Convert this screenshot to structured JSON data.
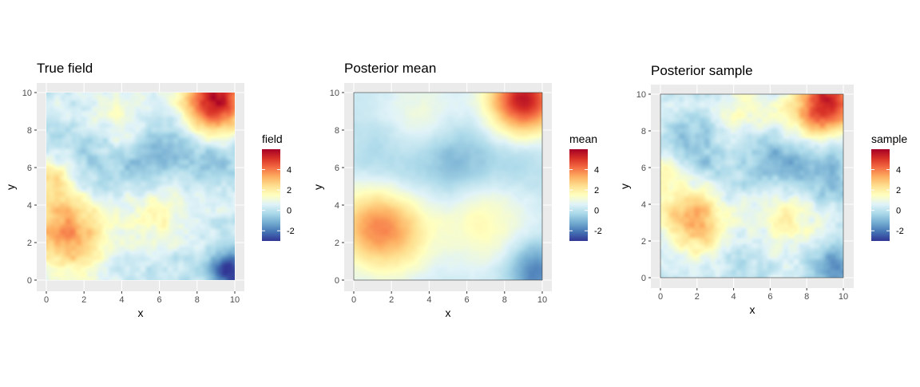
{
  "chart_data": [
    {
      "type": "heatmap",
      "title": "True field",
      "xlabel": "x",
      "ylabel": "y",
      "xlim": [
        0,
        10
      ],
      "ylim": [
        0,
        10
      ],
      "x_ticks": [
        "0",
        "2",
        "4",
        "6",
        "8",
        "10"
      ],
      "y_ticks": [
        "0",
        "2",
        "4",
        "6",
        "8",
        "10"
      ],
      "legend_title": "field",
      "legend_ticks": [
        "-2",
        "0",
        "2",
        "4"
      ],
      "value_range": [
        -3,
        6
      ],
      "blobs": [
        {
          "x": 9.0,
          "y": 9.6,
          "value": 5.5,
          "s": 1.2
        },
        {
          "x": 0.8,
          "y": 3.0,
          "value": 2.6,
          "s": 1.4
        },
        {
          "x": 2.0,
          "y": 1.5,
          "value": 1.5,
          "s": 1.5
        },
        {
          "x": 6.0,
          "y": 3.2,
          "value": 1.4,
          "s": 1.5
        },
        {
          "x": 4.0,
          "y": 8.3,
          "value": 1.3,
          "s": 1.2
        },
        {
          "x": 0.5,
          "y": 5.5,
          "value": 1.8,
          "s": 0.8
        },
        {
          "x": 5.8,
          "y": 6.8,
          "value": -1.4,
          "s": 1.4
        },
        {
          "x": 2.2,
          "y": 6.2,
          "value": -1.0,
          "s": 1.5
        },
        {
          "x": 9.0,
          "y": 6.3,
          "value": -0.9,
          "s": 1.0
        },
        {
          "x": 9.8,
          "y": 0.5,
          "value": -3.2,
          "s": 0.8
        },
        {
          "x": 3.8,
          "y": 0.9,
          "value": -0.6,
          "s": 1.5
        },
        {
          "x": 7.0,
          "y": 1.0,
          "value": -0.4,
          "s": 1.5
        }
      ]
    },
    {
      "type": "heatmap",
      "title": "Posterior mean",
      "xlabel": "x",
      "ylabel": "y",
      "xlim": [
        0,
        10
      ],
      "ylim": [
        0,
        10
      ],
      "x_ticks": [
        "0",
        "2",
        "4",
        "6",
        "8",
        "10"
      ],
      "y_ticks": [
        "0",
        "2",
        "4",
        "6",
        "8",
        "10"
      ],
      "legend_title": "mean",
      "legend_ticks": [
        "-2",
        "0",
        "2",
        "4"
      ],
      "value_range": [
        -3,
        6
      ],
      "blobs": [
        {
          "x": 9.0,
          "y": 9.6,
          "value": 5.2,
          "s": 1.3
        },
        {
          "x": 1.0,
          "y": 3.0,
          "value": 2.6,
          "s": 1.5
        },
        {
          "x": 2.5,
          "y": 2.2,
          "value": 1.6,
          "s": 1.6
        },
        {
          "x": 6.8,
          "y": 3.0,
          "value": 1.4,
          "s": 1.7
        },
        {
          "x": 3.5,
          "y": 8.5,
          "value": 1.0,
          "s": 1.5
        },
        {
          "x": 5.5,
          "y": 6.3,
          "value": -1.4,
          "s": 1.5
        },
        {
          "x": 1.8,
          "y": 6.5,
          "value": -0.8,
          "s": 1.7
        },
        {
          "x": 9.0,
          "y": 6.3,
          "value": -0.6,
          "s": 1.2
        },
        {
          "x": 9.6,
          "y": 0.5,
          "value": -2.2,
          "s": 1.1
        },
        {
          "x": 4.2,
          "y": 1.0,
          "value": -0.4,
          "s": 1.7
        }
      ]
    },
    {
      "type": "heatmap",
      "title": "Posterior sample",
      "xlabel": "x",
      "ylabel": "y",
      "xlim": [
        0,
        10
      ],
      "ylim": [
        0,
        10
      ],
      "x_ticks": [
        "0",
        "2",
        "4",
        "6",
        "8",
        "10"
      ],
      "y_ticks": [
        "0",
        "2",
        "4",
        "6",
        "8",
        "10"
      ],
      "legend_title": "sample",
      "legend_ticks": [
        "-2",
        "0",
        "2",
        "4"
      ],
      "value_range": [
        -3,
        6
      ],
      "blobs": [
        {
          "x": 9.2,
          "y": 9.5,
          "value": 5.2,
          "s": 1.1
        },
        {
          "x": 1.5,
          "y": 3.5,
          "value": 2.3,
          "s": 1.2
        },
        {
          "x": 2.5,
          "y": 2.5,
          "value": 1.6,
          "s": 1.1
        },
        {
          "x": 6.8,
          "y": 3.3,
          "value": 1.6,
          "s": 1.3
        },
        {
          "x": 4.5,
          "y": 8.6,
          "value": 1.1,
          "s": 1.2
        },
        {
          "x": 7.5,
          "y": 8.5,
          "value": 1.3,
          "s": 1.0
        },
        {
          "x": 6.5,
          "y": 6.5,
          "value": -1.6,
          "s": 1.4
        },
        {
          "x": 2.0,
          "y": 7.0,
          "value": -1.2,
          "s": 1.3
        },
        {
          "x": 9.0,
          "y": 5.5,
          "value": -1.2,
          "s": 1.1
        },
        {
          "x": 9.6,
          "y": 0.6,
          "value": -1.8,
          "s": 1.0
        },
        {
          "x": 4.0,
          "y": 1.5,
          "value": -0.6,
          "s": 1.2
        },
        {
          "x": 0.4,
          "y": 5.8,
          "value": 1.2,
          "s": 0.8
        }
      ]
    }
  ],
  "palette": [
    "#313695",
    "#4575b4",
    "#74add1",
    "#abd9e9",
    "#e0f3f8",
    "#ffffbf",
    "#fee090",
    "#fdae61",
    "#f46d43",
    "#d73027",
    "#a50026"
  ],
  "panel_background": "#ebebeb",
  "grid_color": "#ffffff"
}
